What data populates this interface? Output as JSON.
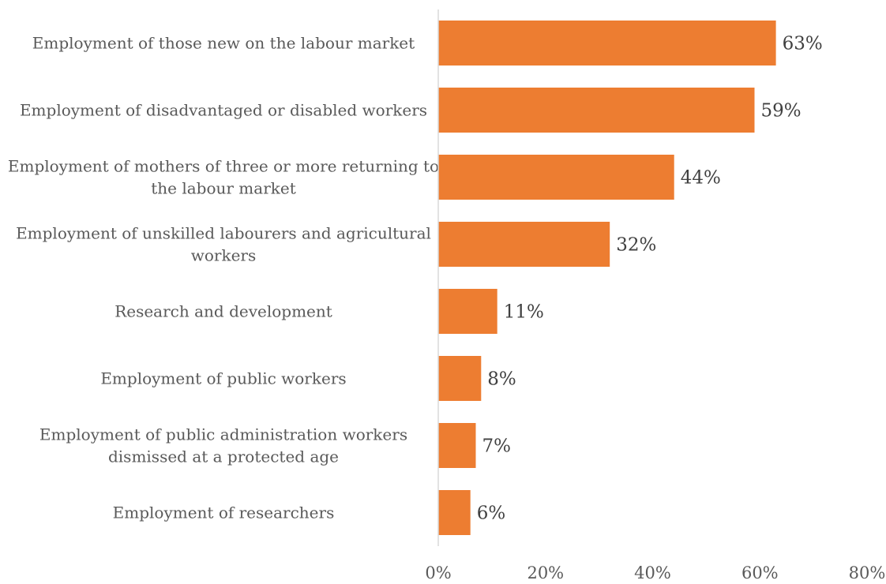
{
  "chart_data": {
    "type": "bar",
    "orientation": "horizontal",
    "categories": [
      [
        "Employment of those new on the labour market"
      ],
      [
        "Employment of disadvantaged or disabled workers"
      ],
      [
        "Employment of mothers of three or more returning to",
        "the labour market"
      ],
      [
        "Employment of unskilled labourers and agricultural",
        "workers"
      ],
      [
        "Research and development"
      ],
      [
        "Employment of public workers"
      ],
      [
        "Employment of public administration workers",
        "dismissed at a protected age"
      ],
      [
        "Employment of researchers"
      ]
    ],
    "values": [
      63,
      59,
      44,
      32,
      11,
      8,
      7,
      6
    ],
    "value_labels": [
      "63%",
      "59%",
      "44%",
      "32%",
      "11%",
      "8%",
      "7%",
      "6%"
    ],
    "xlim": [
      0,
      80
    ],
    "x_ticks": [
      0,
      20,
      40,
      60,
      80
    ],
    "x_tick_labels": [
      "0%",
      "20%",
      "40%",
      "60%",
      "80%"
    ],
    "bar_color": "#ED7D31",
    "axis_color": "#D9D9D9",
    "grid": false,
    "legend": "none"
  }
}
